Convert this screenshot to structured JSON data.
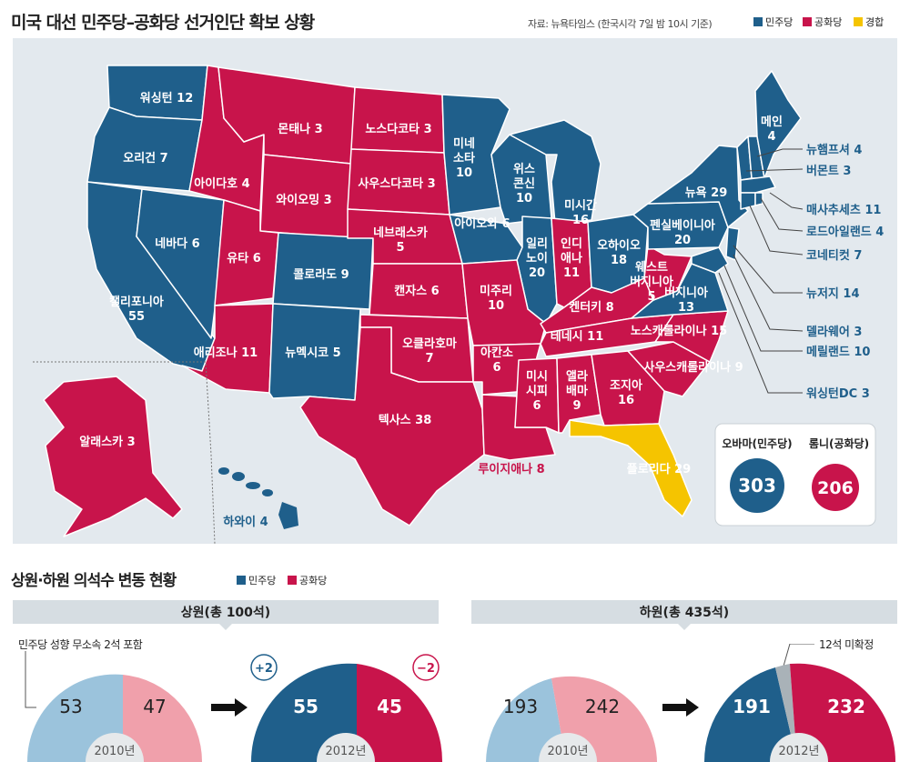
{
  "title": "미국 대선 민주당–공화당 선거인단 확보 상황",
  "source": "자료: 뉴욕타임스 (한국시각 7일 밤 10시 기준)",
  "legend": {
    "dem": "민주당",
    "rep": "공화당",
    "swing": "경합"
  },
  "colors": {
    "dem": "#1f5f8b",
    "rep": "#c8144b",
    "swing": "#f5c400",
    "dem_light": "#9bc3dc",
    "rep_light": "#f0a0ab",
    "undecided": "#a9b2b8"
  },
  "states": {
    "wa": "워싱턴 12",
    "or": "오리건 7",
    "ca1": "캘리포니아",
    "ca2": "55",
    "nv": "네바다 6",
    "id": "아이다호 4",
    "mt": "몬태나 3",
    "wy": "와이오밍 3",
    "ut": "유타 6",
    "co": "콜로라도 9",
    "az": "애리조나 11",
    "nm": "뉴멕시코 5",
    "nd": "노스다코타 3",
    "sd": "사우스다코타 3",
    "ne1": "네브래스카",
    "ne2": "5",
    "ks": "캔자스 6",
    "ok1": "오클라호마",
    "ok2": "7",
    "tx": "텍사스 38",
    "mn1": "미네",
    "mn2": "소타",
    "mn3": "10",
    "wi1": "위스",
    "wi2": "콘신",
    "wi3": "10",
    "ia": "아이오와 6",
    "mo1": "미주리",
    "mo2": "10",
    "ar1": "아칸소",
    "ar2": "6",
    "la": "루이지애나 8",
    "ms1": "미시",
    "ms2": "시피",
    "ms3": "6",
    "il1": "일리",
    "il2": "노이",
    "il3": "20",
    "mi1": "미시간",
    "mi2": "16",
    "in1": "인디",
    "in2": "애나",
    "in3": "11",
    "oh1": "오하이오",
    "oh2": "18",
    "ky": "켄터키 8",
    "tn": "테네시 11",
    "al1": "앨라",
    "al2": "배마",
    "al3": "9",
    "ga1": "조지아",
    "ga2": "16",
    "fl": "플로리다 29",
    "sc": "사우스캐롤라이나 9",
    "nc": "노스캐롤라이나 15",
    "va1": "버지니아",
    "va2": "13",
    "wv1": "웨스트",
    "wv2": "버지니아",
    "wv3": "5",
    "pa1": "펜실베이니아",
    "pa2": "20",
    "ny": "뉴욕 29",
    "me1": "메인",
    "me2": "4",
    "ak": "알래스카 3",
    "hi": "하와이 4"
  },
  "callouts": {
    "nh": "뉴햄프셔 4",
    "vt": "버몬트 3",
    "ma": "매사추세츠 11",
    "ri": "로드아일랜드 4",
    "ct": "코네티컷 7",
    "nj": "뉴저지 14",
    "de": "델라웨어 3",
    "md": "메릴랜드 10",
    "dc": "워싱턴DC 3"
  },
  "totals": {
    "obama_label": "오바마(민주당)",
    "obama_value": "303",
    "romney_label": "롬니(공화당)",
    "romney_value": "206"
  },
  "congress": {
    "title": "상원·하원 의석수 변동 현황",
    "legend_dem": "민주당",
    "legend_rep": "공화당",
    "senate_title": "상원(총 100석)",
    "senate_note": "민주당 성향 무소속 2석 포함",
    "senate_2010": {
      "dem": "53",
      "rep": "47",
      "year": "2010년"
    },
    "senate_2012": {
      "dem": "55",
      "rep": "45",
      "year": "2012년",
      "dem_change": "+2",
      "rep_change": "−2"
    },
    "house_title": "하원(총 435석)",
    "house_note": "12석 미확정",
    "house_2010": {
      "dem": "193",
      "rep": "242",
      "year": "2010년"
    },
    "house_2012": {
      "dem": "191",
      "rep": "232",
      "year": "2012년"
    }
  }
}
